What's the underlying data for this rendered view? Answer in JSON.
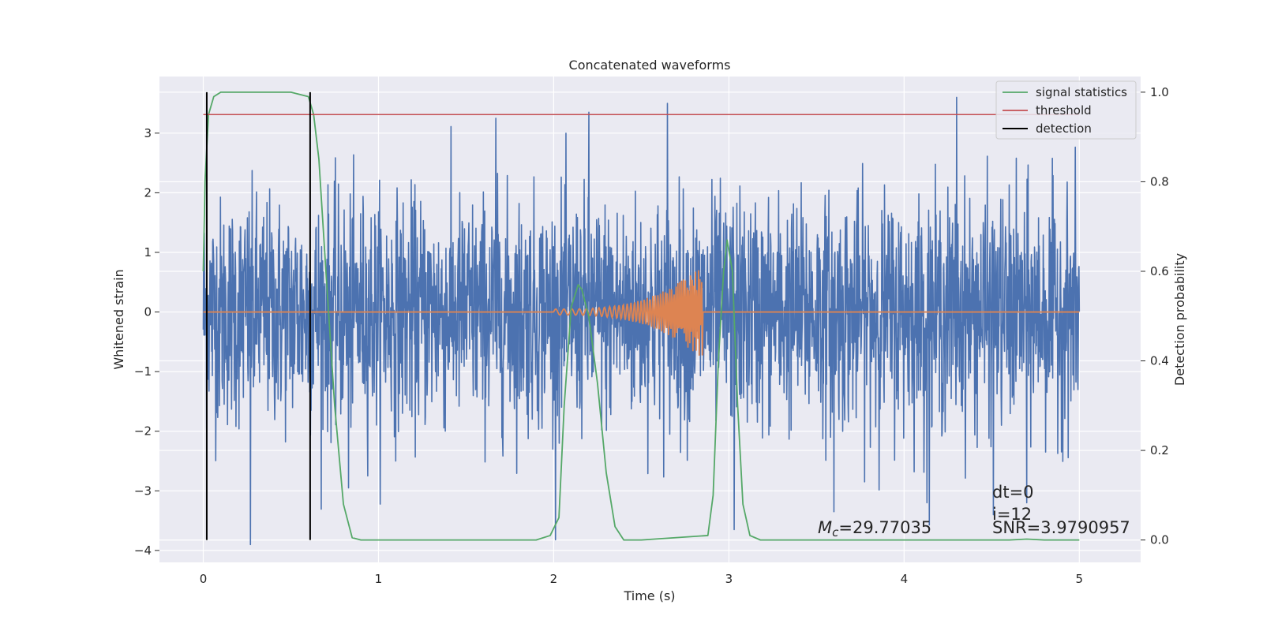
{
  "chart_data": {
    "type": "line",
    "title": "Concatenated waveforms",
    "xlabel": "Time (s)",
    "ylabel_left": "Whitened strain",
    "ylabel_right": "Detection probability",
    "xlim": [
      -0.25,
      5.35
    ],
    "ylim_left": [
      -4.2,
      3.95
    ],
    "ylim_right": [
      -0.05,
      1.035
    ],
    "x_ticks": [
      0,
      1,
      2,
      3,
      4,
      5
    ],
    "y_left_ticks": [
      -4,
      -3,
      -2,
      -1,
      0,
      1,
      2,
      3
    ],
    "y_right_ticks": [
      0.0,
      0.2,
      0.4,
      0.6,
      0.8,
      1.0
    ],
    "grid": true,
    "legend_position": "top-right",
    "colors": {
      "background": "#eaeaf2",
      "grid": "#ffffff",
      "strain": "#4c72b0",
      "template": "#dd8452",
      "signal_statistics": "#55a868",
      "threshold": "#c44e52",
      "detection": "#000000"
    },
    "series": [
      {
        "name": "whitened strain (noise)",
        "axis": "left",
        "x_range": [
          0,
          5
        ],
        "amplitude_envelope": [
          -3.9,
          3.6
        ],
        "notable_peaks": [
          {
            "x": 0.27,
            "y": -3.9
          },
          {
            "x": 0.83,
            "y": -2.95
          },
          {
            "x": 1.67,
            "y": 3.25
          },
          {
            "x": 2.2,
            "y": 3.35
          },
          {
            "x": 2.65,
            "y": 3.5
          },
          {
            "x": 3.03,
            "y": -3.65
          },
          {
            "x": 4.3,
            "y": 3.6
          },
          {
            "x": 3.6,
            "y": -3.35
          },
          {
            "x": 4.13,
            "y": -3.2
          },
          {
            "x": 4.51,
            "y": -3.4
          },
          {
            "x": 4.7,
            "y": -3.2
          }
        ]
      },
      {
        "name": "injected waveform (chirp)",
        "axis": "left",
        "x_range": [
          0,
          5
        ],
        "chirp_start": 2.0,
        "chirp_end": 2.85,
        "start_amplitude": 0.05,
        "end_amplitude": 0.8
      },
      {
        "name": "signal statistics",
        "axis": "right",
        "x": [
          0.0,
          0.01,
          0.03,
          0.06,
          0.1,
          0.5,
          0.6,
          0.63,
          0.66,
          0.7,
          0.75,
          0.8,
          0.85,
          0.9,
          1.9,
          1.98,
          2.03,
          2.06,
          2.1,
          2.14,
          2.16,
          2.2,
          2.25,
          2.3,
          2.35,
          2.4,
          2.5,
          2.88,
          2.91,
          2.94,
          2.97,
          2.99,
          3.02,
          3.05,
          3.08,
          3.12,
          3.18,
          4.6,
          4.7,
          4.8,
          5.0
        ],
        "values": [
          0.6,
          0.8,
          0.95,
          0.99,
          1.0,
          1.0,
          0.99,
          0.95,
          0.85,
          0.6,
          0.3,
          0.08,
          0.005,
          0.0,
          0.0,
          0.01,
          0.05,
          0.3,
          0.52,
          0.57,
          0.56,
          0.5,
          0.35,
          0.15,
          0.03,
          0.0,
          0.0,
          0.01,
          0.1,
          0.4,
          0.6,
          0.67,
          0.6,
          0.3,
          0.08,
          0.01,
          0.0,
          0.0,
          0.002,
          0.0,
          0.0
        ]
      },
      {
        "name": "threshold",
        "axis": "right",
        "x": [
          0,
          5
        ],
        "values": [
          0.95,
          0.95
        ]
      },
      {
        "name": "detection",
        "axis": "right",
        "vertical_lines_x": [
          0.02,
          0.61
        ]
      }
    ],
    "legend": [
      "signal statistics",
      "threshold",
      "detection"
    ],
    "annotations": {
      "mc": "$M_c$=29.77035",
      "dt": "dt=0",
      "i": "i=12",
      "snr": "SNR=3.9790957"
    }
  },
  "annot_parts": {
    "mc_symbol": "M",
    "mc_subscript": "c",
    "mc_value": "=29.77035"
  }
}
